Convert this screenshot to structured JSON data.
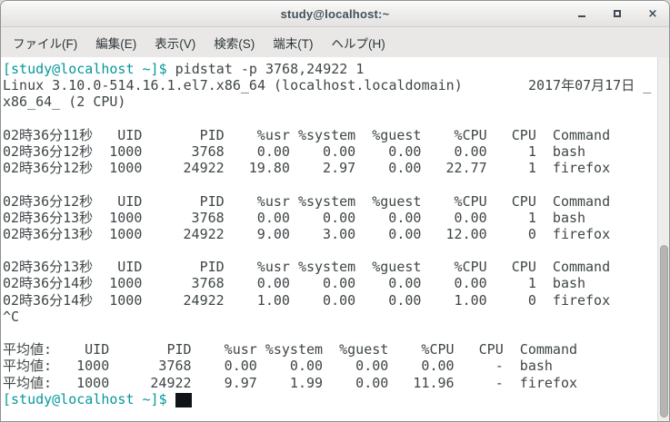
{
  "window": {
    "title": "study@localhost:~"
  },
  "titlebar": {
    "buttons": [
      {
        "name": "minimize",
        "glyph": ""
      },
      {
        "name": "maximize",
        "glyph": ""
      },
      {
        "name": "close",
        "glyph": "×"
      }
    ]
  },
  "menu": {
    "items": [
      {
        "id": "file",
        "label": "ファイル(F)"
      },
      {
        "id": "edit",
        "label": "編集(E)"
      },
      {
        "id": "view",
        "label": "表示(V)"
      },
      {
        "id": "search",
        "label": "検索(S)"
      },
      {
        "id": "terminal",
        "label": "端末(T)"
      },
      {
        "id": "help",
        "label": "ヘルプ(H)"
      }
    ]
  },
  "colors": {
    "prompt_teal": "#06989a",
    "terminal_fg": "#3f4547",
    "terminal_bg": "#ffffff",
    "titlebar_text": "#41505a"
  },
  "terminal": {
    "prompt": "[study@localhost ~]$",
    "command": "pidstat -p 3768,24922 1",
    "lines": [
      {
        "segments": [
          {
            "color": "prompt",
            "text": "[study@localhost ~]$"
          },
          {
            "color": "fg",
            "text": " pidstat -p 3768,24922 1"
          }
        ]
      },
      {
        "segments": [
          {
            "color": "fg",
            "text": "Linux 3.10.0-514.16.1.el7.x86_64 (localhost.localdomain)        2017年07月17日 _"
          }
        ]
      },
      {
        "segments": [
          {
            "color": "fg",
            "text": "x86_64_ (2 CPU)"
          }
        ]
      },
      {
        "segments": [
          {
            "color": "fg",
            "text": ""
          }
        ]
      },
      {
        "segments": [
          {
            "color": "fg",
            "text": "02時36分11秒   UID       PID    %usr %system  %guest    %CPU   CPU  Command"
          }
        ]
      },
      {
        "segments": [
          {
            "color": "fg",
            "text": "02時36分12秒  1000      3768    0.00    0.00    0.00    0.00     1  bash"
          }
        ]
      },
      {
        "segments": [
          {
            "color": "fg",
            "text": "02時36分12秒  1000     24922   19.80    2.97    0.00   22.77     1  firefox"
          }
        ]
      },
      {
        "segments": [
          {
            "color": "fg",
            "text": ""
          }
        ]
      },
      {
        "segments": [
          {
            "color": "fg",
            "text": "02時36分12秒   UID       PID    %usr %system  %guest    %CPU   CPU  Command"
          }
        ]
      },
      {
        "segments": [
          {
            "color": "fg",
            "text": "02時36分13秒  1000      3768    0.00    0.00    0.00    0.00     1  bash"
          }
        ]
      },
      {
        "segments": [
          {
            "color": "fg",
            "text": "02時36分13秒  1000     24922    9.00    3.00    0.00   12.00     0  firefox"
          }
        ]
      },
      {
        "segments": [
          {
            "color": "fg",
            "text": ""
          }
        ]
      },
      {
        "segments": [
          {
            "color": "fg",
            "text": "02時36分13秒   UID       PID    %usr %system  %guest    %CPU   CPU  Command"
          }
        ]
      },
      {
        "segments": [
          {
            "color": "fg",
            "text": "02時36分14秒  1000      3768    0.00    0.00    0.00    0.00     1  bash"
          }
        ]
      },
      {
        "segments": [
          {
            "color": "fg",
            "text": "02時36分14秒  1000     24922    1.00    0.00    0.00    1.00     0  firefox"
          }
        ]
      },
      {
        "segments": [
          {
            "color": "fg",
            "text": "^C"
          }
        ]
      },
      {
        "segments": [
          {
            "color": "fg",
            "text": ""
          }
        ]
      },
      {
        "segments": [
          {
            "color": "fg",
            "text": "平均値:    UID       PID    %usr %system  %guest    %CPU   CPU  Command"
          }
        ]
      },
      {
        "segments": [
          {
            "color": "fg",
            "text": "平均値:   1000      3768    0.00    0.00    0.00    0.00     -  bash"
          }
        ]
      },
      {
        "segments": [
          {
            "color": "fg",
            "text": "平均値:   1000     24922    9.97    1.99    0.00   11.96     -  firefox"
          }
        ]
      },
      {
        "segments": [
          {
            "color": "prompt",
            "text": "[study@localhost ~]$"
          },
          {
            "color": "fg",
            "text": " "
          }
        ],
        "cursor": true
      }
    ]
  }
}
